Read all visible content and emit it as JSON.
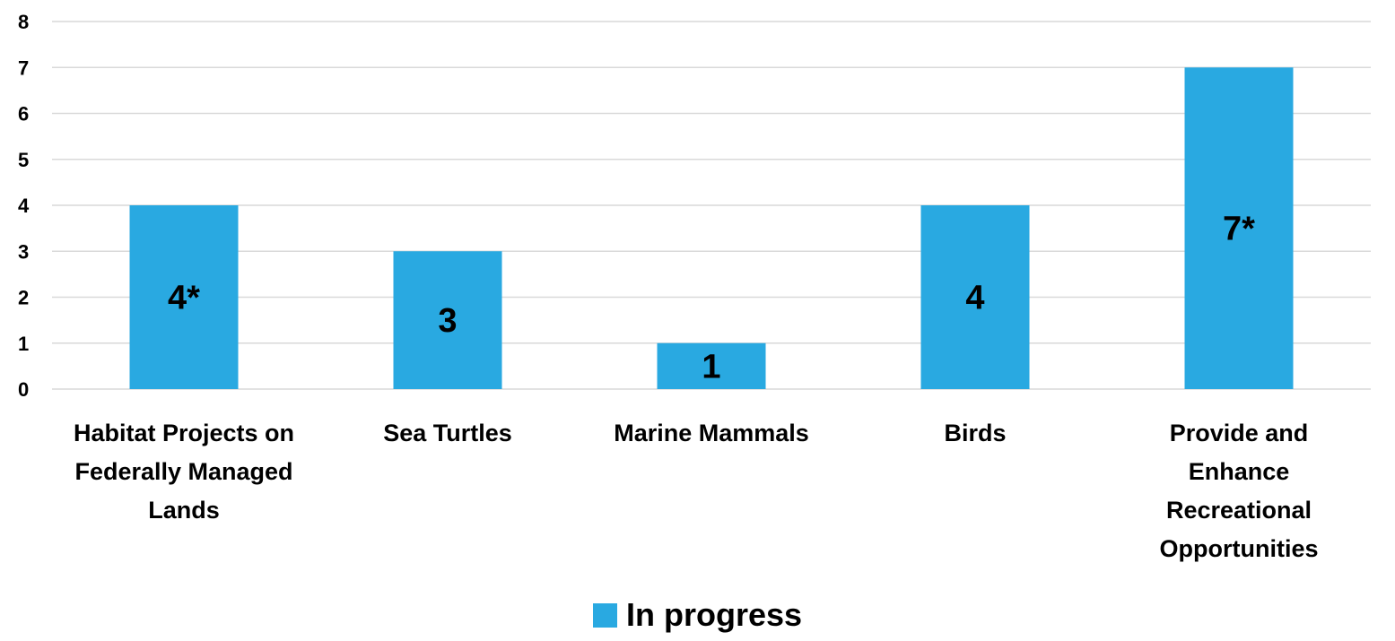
{
  "chart_data": {
    "type": "bar",
    "categories": [
      "Habitat Projects on Federally Managed Lands",
      "Sea Turtles",
      "Marine Mammals",
      "Birds",
      "Provide and Enhance Recreational Opportunities"
    ],
    "category_lines": [
      [
        "Habitat Projects on",
        "Federally Managed",
        "Lands"
      ],
      [
        "Sea Turtles"
      ],
      [
        "Marine Mammals"
      ],
      [
        "Birds"
      ],
      [
        "Provide and",
        "Enhance",
        "Recreational",
        "Opportunities"
      ]
    ],
    "series": [
      {
        "name": "In progress",
        "values": [
          4,
          3,
          1,
          4,
          7
        ],
        "data_labels": [
          "4*",
          "3",
          "1",
          "4",
          "7*"
        ],
        "color": "#29a9e1"
      }
    ],
    "yticks": [
      "0",
      "1",
      "2",
      "3",
      "4",
      "5",
      "6",
      "7",
      "8"
    ],
    "ylim": [
      0,
      8
    ],
    "grid": true,
    "gridline_color": "#d9d9d9",
    "legend_placement": "bottom-center"
  }
}
